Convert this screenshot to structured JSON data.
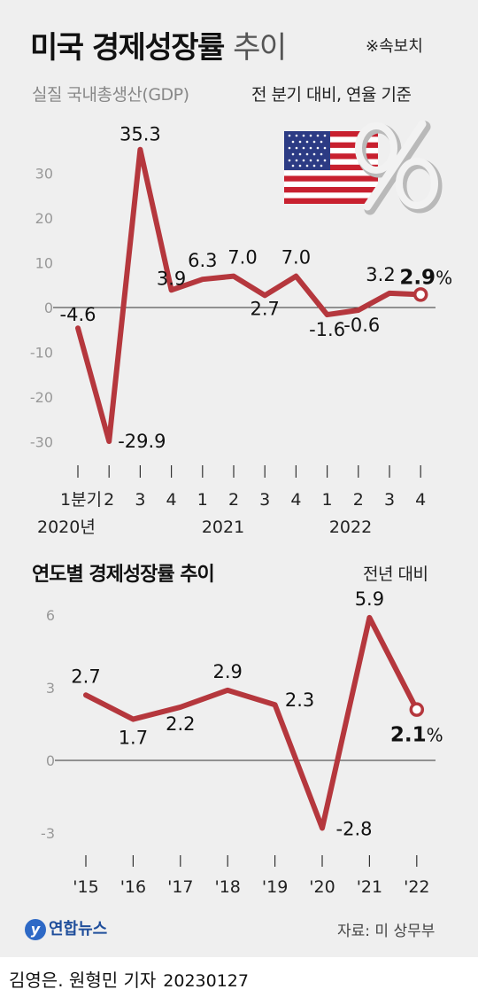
{
  "header": {
    "title": "미국 경제성장률",
    "title_suffix": "추이",
    "note": "※속보치",
    "subtitle_left": "실질 국내총생산(GDP)",
    "subtitle_right": "전 분기 대비, 연율 기준"
  },
  "chart_data": [
    {
      "type": "line",
      "xlabel": "",
      "ylabel": "",
      "ylim": [
        -30,
        35.3
      ],
      "yticks": [
        "30",
        "20",
        "10",
        "0",
        "-10",
        "-20",
        "-30"
      ],
      "categories": [
        "1분기",
        "2",
        "3",
        "4",
        "1",
        "2",
        "3",
        "4",
        "1",
        "2",
        "3",
        "4"
      ],
      "year_labels": [
        "2020년",
        "2021",
        "2022"
      ],
      "values": [
        -4.6,
        -29.9,
        35.3,
        3.9,
        6.3,
        7.0,
        2.7,
        7.0,
        -1.6,
        -0.6,
        3.2,
        2.9
      ],
      "data_labels": [
        "-4.6",
        "-29.9",
        "35.3",
        "3.9",
        "6.3",
        "7.0",
        "2.7",
        "7.0",
        "-1.6",
        "-0.6",
        "3.2",
        "2.9"
      ],
      "last_unit": "%",
      "color": "#b5373d"
    },
    {
      "type": "line",
      "title": "연도별 경제성장률 추이",
      "unit_note": "전년 대비",
      "xlabel": "",
      "ylabel": "",
      "ylim": [
        -3,
        6
      ],
      "yticks": [
        "6",
        "3",
        "0",
        "-3"
      ],
      "categories": [
        "'15",
        "'16",
        "'17",
        "'18",
        "'19",
        "'20",
        "'21",
        "'22"
      ],
      "values": [
        2.7,
        1.7,
        2.2,
        2.9,
        2.3,
        -2.8,
        5.9,
        2.1
      ],
      "data_labels": [
        "2.7",
        "1.7",
        "2.2",
        "2.9",
        "2.3",
        "-2.8",
        "5.9",
        "2.1"
      ],
      "last_unit": "%",
      "color": "#b5373d"
    }
  ],
  "footer": {
    "logo": "연합뉴스",
    "source": "자료: 미 상무부",
    "credit": "김영은. 원형민 기자",
    "date": "20230127"
  }
}
